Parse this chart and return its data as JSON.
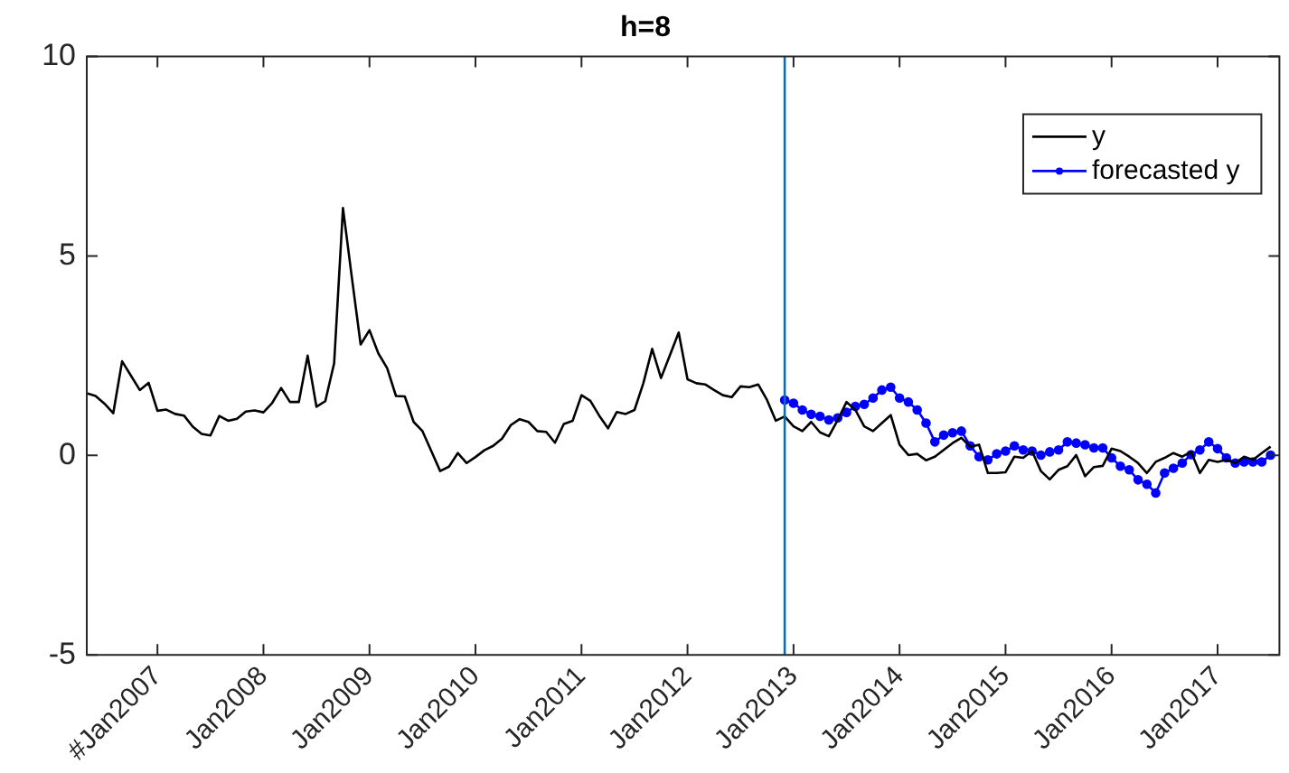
{
  "chart_data": {
    "type": "line",
    "title": "h=8",
    "xlim": [
      "2006-05",
      "2017-08"
    ],
    "ylim": [
      -5,
      10
    ],
    "yticks": [
      -5,
      0,
      5,
      10
    ],
    "xticks": [
      {
        "value": "2007-01",
        "label": "#Jan2007"
      },
      {
        "value": "2008-01",
        "label": "Jan2008"
      },
      {
        "value": "2009-01",
        "label": "Jan2009"
      },
      {
        "value": "2010-01",
        "label": "Jan2010"
      },
      {
        "value": "2011-01",
        "label": "Jan2011"
      },
      {
        "value": "2012-01",
        "label": "Jan2012"
      },
      {
        "value": "2013-01",
        "label": "Jan2013"
      },
      {
        "value": "2014-01",
        "label": "Jan2014"
      },
      {
        "value": "2015-01",
        "label": "Jan2015"
      },
      {
        "value": "2016-01",
        "label": "Jan2016"
      },
      {
        "value": "2017-01",
        "label": "Jan2017"
      }
    ],
    "grid": false,
    "legend": "top right",
    "ref_lines": [
      {
        "axis": "x",
        "value": "2012-12",
        "color": "#0072bd"
      }
    ],
    "series": [
      {
        "name": "y",
        "color": "#000000",
        "marker": "none",
        "x": [
          "2006-05",
          "2006-06",
          "2006-07",
          "2006-08",
          "2006-09",
          "2006-10",
          "2006-11",
          "2006-12",
          "2007-01",
          "2007-02",
          "2007-03",
          "2007-04",
          "2007-05",
          "2007-06",
          "2007-07",
          "2007-08",
          "2007-09",
          "2007-10",
          "2007-11",
          "2007-12",
          "2008-01",
          "2008-02",
          "2008-03",
          "2008-04",
          "2008-05",
          "2008-06",
          "2008-07",
          "2008-08",
          "2008-09",
          "2008-10",
          "2008-11",
          "2008-12",
          "2009-01",
          "2009-02",
          "2009-03",
          "2009-04",
          "2009-05",
          "2009-06",
          "2009-07",
          "2009-08",
          "2009-09",
          "2009-10",
          "2009-11",
          "2009-12",
          "2010-01",
          "2010-02",
          "2010-03",
          "2010-04",
          "2010-05",
          "2010-06",
          "2010-07",
          "2010-08",
          "2010-09",
          "2010-10",
          "2010-11",
          "2010-12",
          "2011-01",
          "2011-02",
          "2011-03",
          "2011-04",
          "2011-05",
          "2011-06",
          "2011-07",
          "2011-08",
          "2011-09",
          "2011-10",
          "2011-11",
          "2011-12",
          "2012-01",
          "2012-02",
          "2012-03",
          "2012-04",
          "2012-05",
          "2012-06",
          "2012-07",
          "2012-08",
          "2012-09",
          "2012-10",
          "2012-11",
          "2012-12",
          "2013-01",
          "2013-02",
          "2013-03",
          "2013-04",
          "2013-05",
          "2013-06",
          "2013-07",
          "2013-08",
          "2013-09",
          "2013-10",
          "2013-11",
          "2013-12",
          "2014-01",
          "2014-02",
          "2014-03",
          "2014-04",
          "2014-05",
          "2014-06",
          "2014-07",
          "2014-08",
          "2014-09",
          "2014-10",
          "2014-11",
          "2014-12",
          "2015-01",
          "2015-02",
          "2015-03",
          "2015-04",
          "2015-05",
          "2015-06",
          "2015-07",
          "2015-08",
          "2015-09",
          "2015-10",
          "2015-11",
          "2015-12",
          "2016-01",
          "2016-02",
          "2016-03",
          "2016-04",
          "2016-05",
          "2016-06",
          "2016-07",
          "2016-08",
          "2016-09",
          "2016-10",
          "2016-11",
          "2016-12",
          "2017-01",
          "2017-02",
          "2017-03",
          "2017-04",
          "2017-05",
          "2017-06",
          "2017-07"
        ],
        "values": [
          1.56,
          1.49,
          1.3,
          1.06,
          2.36,
          2.0,
          1.64,
          1.82,
          1.12,
          1.15,
          1.04,
          1.0,
          0.72,
          0.54,
          0.5,
          0.99,
          0.87,
          0.92,
          1.1,
          1.13,
          1.08,
          1.32,
          1.69,
          1.34,
          1.34,
          2.5,
          1.22,
          1.36,
          2.31,
          6.2,
          4.47,
          2.78,
          3.14,
          2.56,
          2.19,
          1.49,
          1.48,
          0.84,
          0.61,
          0.11,
          -0.39,
          -0.28,
          0.06,
          -0.19,
          -0.04,
          0.13,
          0.24,
          0.42,
          0.76,
          0.91,
          0.84,
          0.61,
          0.59,
          0.32,
          0.79,
          0.87,
          1.51,
          1.37,
          1.0,
          0.68,
          1.09,
          1.04,
          1.14,
          1.81,
          2.67,
          1.94,
          2.51,
          3.08,
          1.91,
          1.81,
          1.78,
          1.64,
          1.51,
          1.46,
          1.73,
          1.71,
          1.78,
          1.39,
          0.87,
          0.98,
          0.73,
          0.61,
          0.84,
          0.58,
          0.48,
          0.89,
          1.34,
          1.14,
          0.73,
          0.61,
          0.81,
          1.01,
          0.27,
          0.01,
          0.04,
          -0.12,
          -0.03,
          0.14,
          0.31,
          0.44,
          0.22,
          0.27,
          -0.44,
          -0.44,
          -0.42,
          -0.03,
          -0.06,
          0.11,
          -0.39,
          -0.6,
          -0.36,
          -0.27,
          0.01,
          -0.52,
          -0.29,
          -0.26,
          0.17,
          0.11,
          -0.03,
          -0.19,
          -0.44,
          -0.16,
          -0.06,
          0.06,
          -0.03,
          0.09,
          -0.44,
          -0.11,
          -0.16,
          -0.11,
          -0.19,
          -0.03,
          -0.11,
          0.06,
          0.22
        ]
      },
      {
        "name": "forecasted y",
        "color": "#0000ff",
        "marker": "circle",
        "x": [
          "2012-12",
          "2013-01",
          "2013-02",
          "2013-03",
          "2013-04",
          "2013-05",
          "2013-06",
          "2013-07",
          "2013-08",
          "2013-09",
          "2013-10",
          "2013-11",
          "2013-12",
          "2014-01",
          "2014-02",
          "2014-03",
          "2014-04",
          "2014-05",
          "2014-06",
          "2014-07",
          "2014-08",
          "2014-09",
          "2014-10",
          "2014-11",
          "2014-12",
          "2015-01",
          "2015-02",
          "2015-03",
          "2015-04",
          "2015-05",
          "2015-06",
          "2015-07",
          "2015-08",
          "2015-09",
          "2015-10",
          "2015-11",
          "2015-12",
          "2016-01",
          "2016-02",
          "2016-03",
          "2016-04",
          "2016-05",
          "2016-06",
          "2016-07",
          "2016-08",
          "2016-09",
          "2016-10",
          "2016-11",
          "2016-12",
          "2017-01",
          "2017-02",
          "2017-03",
          "2017-04",
          "2017-05",
          "2017-06",
          "2017-07"
        ],
        "values": [
          1.39,
          1.31,
          1.14,
          1.03,
          0.98,
          0.89,
          0.94,
          1.08,
          1.23,
          1.28,
          1.44,
          1.64,
          1.71,
          1.44,
          1.34,
          1.14,
          0.81,
          0.34,
          0.51,
          0.57,
          0.61,
          0.24,
          -0.03,
          -0.11,
          0.04,
          0.11,
          0.24,
          0.14,
          0.11,
          0.01,
          0.09,
          0.14,
          0.34,
          0.31,
          0.27,
          0.19,
          0.19,
          -0.06,
          -0.27,
          -0.36,
          -0.61,
          -0.72,
          -0.94,
          -0.44,
          -0.32,
          -0.19,
          0.02,
          0.14,
          0.34,
          0.17,
          -0.06,
          -0.19,
          -0.16,
          -0.16,
          -0.16,
          0.01
        ]
      }
    ]
  }
}
